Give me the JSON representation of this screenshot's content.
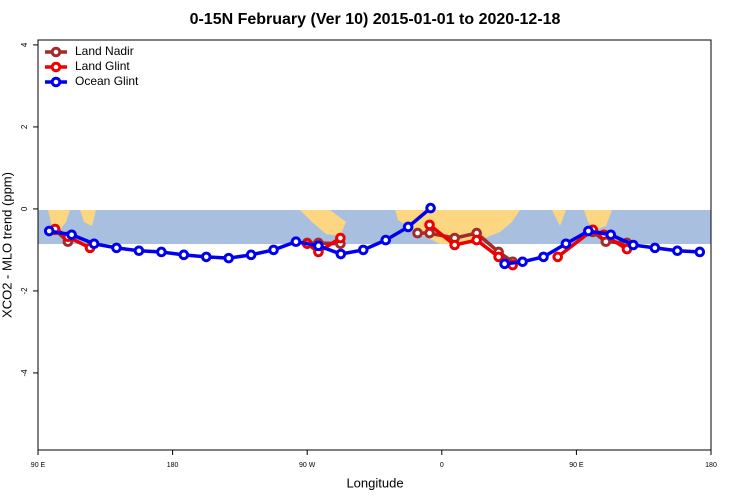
{
  "chart_data": {
    "type": "line",
    "title": "0-15N February (Ver 10)   2015-01-01 to 2020-12-18",
    "x_label": "Longitude",
    "y_label": "XCO2 - MLO trend (ppm)",
    "xlim": [
      90,
      540
    ],
    "ylim": [
      -5.88,
      4.12
    ],
    "xticks": [
      {
        "value": 90,
        "label": "90 E"
      },
      180,
      {
        "value": 270,
        "label": "90 W"
      },
      {
        "value": 360,
        "label": "0"
      },
      {
        "value": 450,
        "label": "90 E"
      },
      {
        "value": 540,
        "label": "180"
      }
    ],
    "yticks": [
      4,
      2,
      0,
      -2,
      -4
    ],
    "legend": "top-left",
    "series": [
      {
        "name": "Land Nadir",
        "color": "#a52a2a",
        "x": [
          101.4,
          110,
          null,
          270,
          277.5,
          292.2,
          null,
          343.8,
          351.8,
          368.6,
          383.3,
          398,
          407.4,
          null,
          461,
          469.7,
          483.8
        ],
        "values": [
          -0.51,
          -0.8,
          null,
          -0.83,
          -0.83,
          -0.85,
          null,
          -0.59,
          -0.59,
          -0.71,
          -0.59,
          -1.05,
          -1.29,
          null,
          -0.56,
          -0.8,
          -0.83
        ]
      },
      {
        "name": "Land Glint",
        "color": "#ee0000",
        "x": [
          101.4,
          110,
          124.8,
          null,
          270,
          277.5,
          292.2,
          null,
          351.8,
          368.6,
          383.3,
          398,
          407.4,
          null,
          437.5,
          461,
          468.4,
          483.8
        ],
        "values": [
          -0.49,
          -0.68,
          -0.95,
          null,
          -0.85,
          -1.05,
          -0.71,
          null,
          -0.39,
          -0.88,
          -0.76,
          -1.17,
          -1.37,
          null,
          -1.17,
          -0.51,
          -0.63,
          -0.98
        ]
      },
      {
        "name": "Ocean Glint",
        "color": "#0000ee",
        "x": [
          97.5,
          112.5,
          127.5,
          142.5,
          157.5,
          172.5,
          187.5,
          202.5,
          217.5,
          232.5,
          247.5,
          262.5,
          277.5,
          292.5,
          307.5,
          322.5,
          337.5,
          352.5,
          null,
          402,
          414,
          428,
          443,
          458,
          473,
          488,
          502.5,
          517.5,
          532.5
        ],
        "values": [
          -0.54,
          -0.63,
          -0.85,
          -0.95,
          -1.02,
          -1.05,
          -1.12,
          -1.17,
          -1.2,
          -1.12,
          -1.0,
          -0.8,
          -0.9,
          -1.1,
          -1.0,
          -0.76,
          -0.44,
          0.02,
          null,
          -1.34,
          -1.29,
          -1.17,
          -0.85,
          -0.54,
          -0.63,
          -0.88,
          -0.95,
          -1.02,
          -1.05
        ]
      }
    ]
  }
}
